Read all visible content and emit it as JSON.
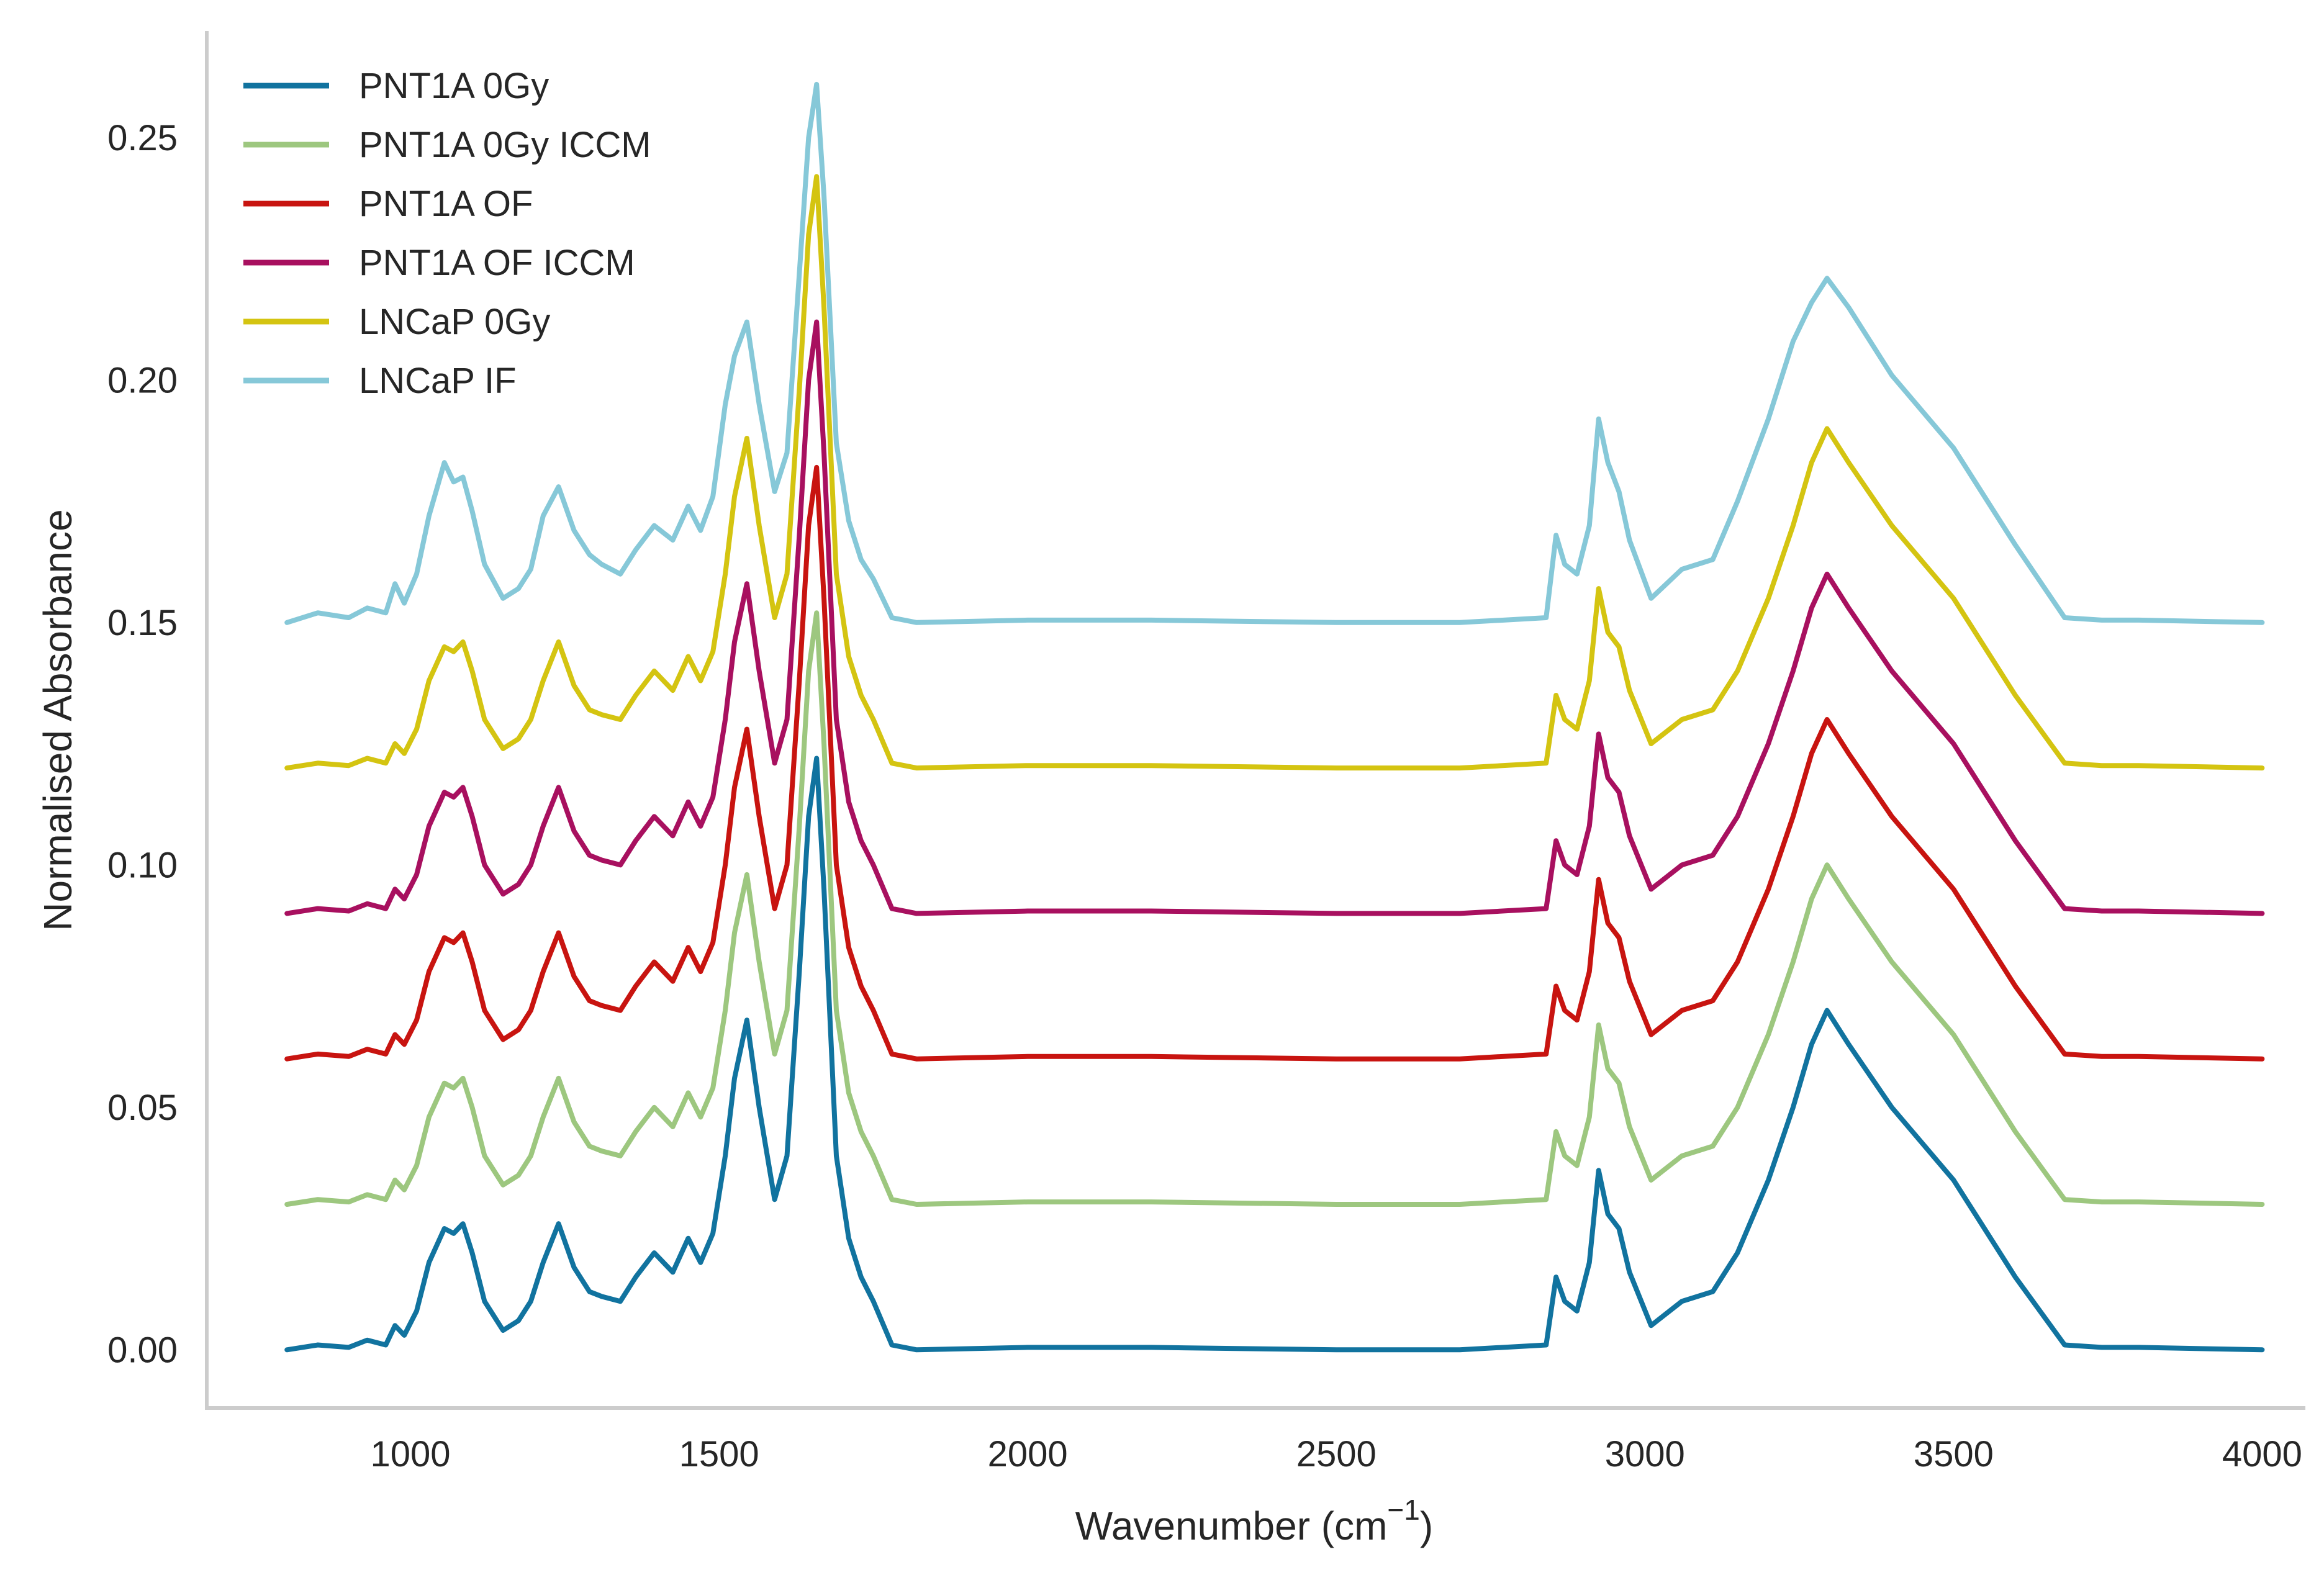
{
  "chart_data": {
    "type": "line",
    "title": "",
    "xlabel": "Wavenumber (cm",
    "xlabel_sup": "−1",
    "xlabel_close": ")",
    "ylabel": "Normalised Absorbance",
    "xlim": [
      670,
      4070
    ],
    "ylim": [
      -0.012,
      0.272
    ],
    "xticks": [
      1000,
      1500,
      2000,
      2500,
      3000,
      3500,
      4000
    ],
    "xtick_labels": [
      "1000",
      "1500",
      "2000",
      "2500",
      "3000",
      "3500",
      "4000"
    ],
    "yticks": [
      0.0,
      0.05,
      0.1,
      0.15,
      0.2,
      0.25
    ],
    "ytick_labels": [
      "0.00",
      "0.05",
      "0.10",
      "0.15",
      "0.20",
      "0.25"
    ],
    "grid": false,
    "legend_position": "top-left",
    "colors": [
      "#11739f",
      "#9dc77f",
      "#c81410",
      "#a8105f",
      "#d4c411",
      "#86c8d8"
    ],
    "baseline_x": [
      800,
      850,
      900,
      930,
      960,
      975,
      990,
      1010,
      1030,
      1055,
      1070,
      1085,
      1100,
      1120,
      1150,
      1175,
      1195,
      1215,
      1240,
      1265,
      1290,
      1310,
      1340,
      1365,
      1395,
      1425,
      1450,
      1470,
      1490,
      1510,
      1525,
      1545,
      1565,
      1590,
      1610,
      1630,
      1645,
      1658,
      1670,
      1690,
      1710,
      1730,
      1750,
      1780,
      1820,
      2000,
      2200,
      2500,
      2700,
      2840,
      2856,
      2870,
      2890,
      2910,
      2925,
      2940,
      2958,
      2975,
      3010,
      3060,
      3110,
      3150,
      3200,
      3240,
      3270,
      3295,
      3330,
      3400,
      3500,
      3600,
      3680,
      3740,
      3800,
      4000
    ],
    "series": [
      {
        "name": "PNT1A 0Gy",
        "offset": 0.0,
        "values": [
          0.0,
          0.001,
          0.0005,
          0.002,
          0.001,
          0.005,
          0.003,
          0.008,
          0.018,
          0.025,
          0.024,
          0.026,
          0.02,
          0.01,
          0.004,
          0.006,
          0.01,
          0.018,
          0.026,
          0.017,
          0.012,
          0.011,
          0.01,
          0.015,
          0.02,
          0.016,
          0.023,
          0.018,
          0.024,
          0.04,
          0.056,
          0.068,
          0.05,
          0.031,
          0.04,
          0.078,
          0.11,
          0.122,
          0.095,
          0.04,
          0.023,
          0.015,
          0.01,
          0.001,
          0.0,
          0.0005,
          0.0005,
          0.0,
          0.0,
          0.001,
          0.015,
          0.01,
          0.008,
          0.018,
          0.037,
          0.028,
          0.025,
          0.016,
          0.005,
          0.01,
          0.012,
          0.02,
          0.035,
          0.05,
          0.063,
          0.07,
          0.063,
          0.05,
          0.035,
          0.015,
          0.001,
          0.0005,
          0.0005,
          0.0
        ]
      },
      {
        "name": "PNT1A 0Gy ICCM",
        "offset": 0.03,
        "values": [
          0.0,
          0.001,
          0.0005,
          0.002,
          0.001,
          0.005,
          0.003,
          0.008,
          0.018,
          0.025,
          0.024,
          0.026,
          0.02,
          0.01,
          0.004,
          0.006,
          0.01,
          0.018,
          0.026,
          0.017,
          0.012,
          0.011,
          0.01,
          0.015,
          0.02,
          0.016,
          0.023,
          0.018,
          0.024,
          0.04,
          0.056,
          0.068,
          0.05,
          0.031,
          0.04,
          0.078,
          0.11,
          0.122,
          0.095,
          0.04,
          0.023,
          0.015,
          0.01,
          0.001,
          0.0,
          0.0005,
          0.0005,
          0.0,
          0.0,
          0.001,
          0.015,
          0.01,
          0.008,
          0.018,
          0.037,
          0.028,
          0.025,
          0.016,
          0.005,
          0.01,
          0.012,
          0.02,
          0.035,
          0.05,
          0.063,
          0.07,
          0.063,
          0.05,
          0.035,
          0.015,
          0.001,
          0.0005,
          0.0005,
          0.0
        ]
      },
      {
        "name": "PNT1A OF",
        "offset": 0.06,
        "values": [
          0.0,
          0.001,
          0.0005,
          0.002,
          0.001,
          0.005,
          0.003,
          0.008,
          0.018,
          0.025,
          0.024,
          0.026,
          0.02,
          0.01,
          0.004,
          0.006,
          0.01,
          0.018,
          0.026,
          0.017,
          0.012,
          0.011,
          0.01,
          0.015,
          0.02,
          0.016,
          0.023,
          0.018,
          0.024,
          0.04,
          0.056,
          0.068,
          0.05,
          0.031,
          0.04,
          0.078,
          0.11,
          0.122,
          0.095,
          0.04,
          0.023,
          0.015,
          0.01,
          0.001,
          0.0,
          0.0005,
          0.0005,
          0.0,
          0.0,
          0.001,
          0.015,
          0.01,
          0.008,
          0.018,
          0.037,
          0.028,
          0.025,
          0.016,
          0.005,
          0.01,
          0.012,
          0.02,
          0.035,
          0.05,
          0.063,
          0.07,
          0.063,
          0.05,
          0.035,
          0.015,
          0.001,
          0.0005,
          0.0005,
          0.0
        ]
      },
      {
        "name": "PNT1A OF ICCM",
        "offset": 0.09,
        "values": [
          0.0,
          0.001,
          0.0005,
          0.002,
          0.001,
          0.005,
          0.003,
          0.008,
          0.018,
          0.025,
          0.024,
          0.026,
          0.02,
          0.01,
          0.004,
          0.006,
          0.01,
          0.018,
          0.026,
          0.017,
          0.012,
          0.011,
          0.01,
          0.015,
          0.02,
          0.016,
          0.023,
          0.018,
          0.024,
          0.04,
          0.056,
          0.068,
          0.05,
          0.031,
          0.04,
          0.078,
          0.11,
          0.122,
          0.095,
          0.04,
          0.023,
          0.015,
          0.01,
          0.001,
          0.0,
          0.0005,
          0.0005,
          0.0,
          0.0,
          0.001,
          0.015,
          0.01,
          0.008,
          0.018,
          0.037,
          0.028,
          0.025,
          0.016,
          0.005,
          0.01,
          0.012,
          0.02,
          0.035,
          0.05,
          0.063,
          0.07,
          0.063,
          0.05,
          0.035,
          0.015,
          0.001,
          0.0005,
          0.0005,
          0.0
        ]
      },
      {
        "name": "LNCaP 0Gy",
        "offset": 0.12,
        "values": [
          0.0,
          0.001,
          0.0005,
          0.002,
          0.001,
          0.005,
          0.003,
          0.008,
          0.018,
          0.025,
          0.024,
          0.026,
          0.02,
          0.01,
          0.004,
          0.006,
          0.01,
          0.018,
          0.026,
          0.017,
          0.012,
          0.011,
          0.01,
          0.015,
          0.02,
          0.016,
          0.023,
          0.018,
          0.024,
          0.04,
          0.056,
          0.068,
          0.05,
          0.031,
          0.04,
          0.078,
          0.11,
          0.122,
          0.095,
          0.04,
          0.023,
          0.015,
          0.01,
          0.001,
          0.0,
          0.0005,
          0.0005,
          0.0,
          0.0,
          0.001,
          0.015,
          0.01,
          0.008,
          0.018,
          0.037,
          0.028,
          0.025,
          0.016,
          0.005,
          0.01,
          0.012,
          0.02,
          0.035,
          0.05,
          0.063,
          0.07,
          0.063,
          0.05,
          0.035,
          0.015,
          0.001,
          0.0005,
          0.0005,
          0.0
        ]
      },
      {
        "name": "LNCaP IF",
        "offset": 0.15,
        "values": [
          0.0,
          0.002,
          0.001,
          0.003,
          0.002,
          0.008,
          0.004,
          0.01,
          0.022,
          0.033,
          0.029,
          0.03,
          0.023,
          0.012,
          0.005,
          0.007,
          0.011,
          0.022,
          0.028,
          0.019,
          0.014,
          0.012,
          0.01,
          0.015,
          0.02,
          0.017,
          0.024,
          0.019,
          0.026,
          0.045,
          0.055,
          0.062,
          0.045,
          0.027,
          0.035,
          0.072,
          0.1,
          0.111,
          0.088,
          0.037,
          0.021,
          0.013,
          0.009,
          0.001,
          0.0,
          0.0005,
          0.0005,
          0.0,
          0.0,
          0.001,
          0.018,
          0.012,
          0.01,
          0.02,
          0.042,
          0.033,
          0.027,
          0.017,
          0.005,
          0.011,
          0.013,
          0.025,
          0.042,
          0.058,
          0.066,
          0.071,
          0.065,
          0.051,
          0.036,
          0.016,
          0.001,
          0.0005,
          0.0005,
          0.0
        ]
      }
    ]
  }
}
